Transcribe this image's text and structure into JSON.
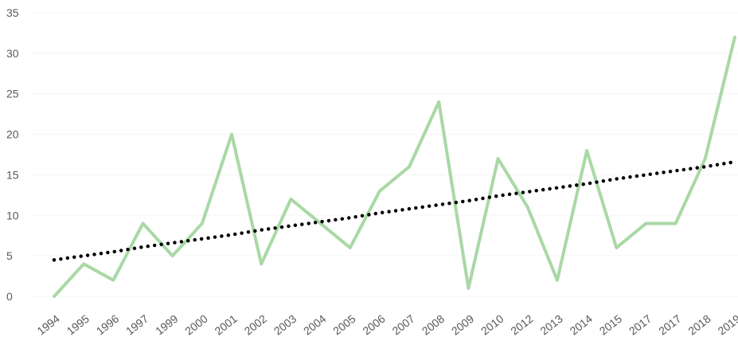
{
  "chart_data": {
    "type": "line",
    "title": "",
    "xlabel": "",
    "ylabel": "",
    "ylim": [
      0,
      35
    ],
    "yticks": [
      0,
      5,
      10,
      15,
      20,
      25,
      30,
      35
    ],
    "grid": true,
    "categories": [
      "1994",
      "1995",
      "1996",
      "1997",
      "1999",
      "2000",
      "2001",
      "2002",
      "2003",
      "2004",
      "2005",
      "2006",
      "2007",
      "2008",
      "2009",
      "2010",
      "2012",
      "2013",
      "2014",
      "2015",
      "2017",
      "2017",
      "2018",
      "2019"
    ],
    "series": [
      {
        "values": [
          0,
          4,
          2,
          9,
          5,
          9,
          20,
          4,
          12,
          9,
          6,
          13,
          16,
          24,
          1,
          17,
          11,
          2,
          18,
          6,
          9,
          9,
          17,
          32
        ],
        "color": "#a9d8a5",
        "style": "solid"
      },
      {
        "values": [
          4.5,
          5.0,
          5.5,
          6.1,
          6.6,
          7.1,
          7.6,
          8.2,
          8.7,
          9.2,
          9.7,
          10.3,
          10.8,
          11.3,
          11.8,
          12.4,
          12.9,
          13.4,
          13.9,
          14.5,
          15.0,
          15.5,
          16.0,
          16.6
        ],
        "color": "#000000",
        "style": "dotted",
        "trendline": true
      }
    ]
  }
}
